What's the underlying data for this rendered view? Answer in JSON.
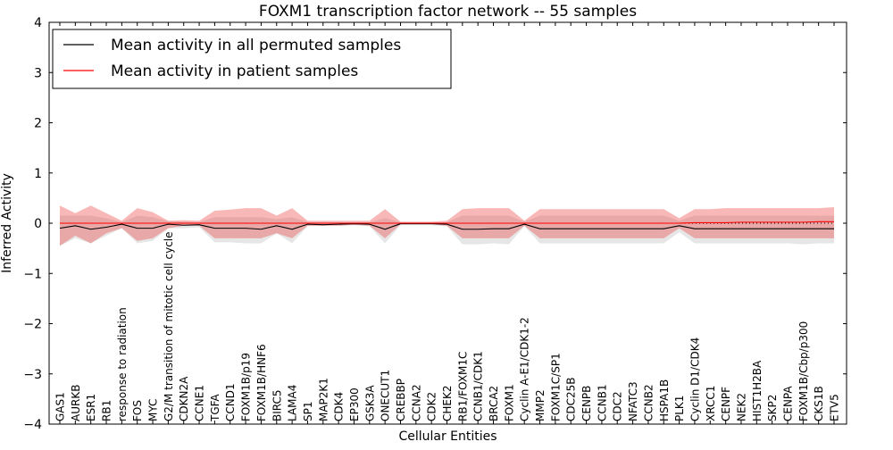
{
  "chart_data": {
    "type": "line",
    "title": "FOXM1 transcription factor network -- 55 samples",
    "xlabel": "Cellular Entities",
    "ylabel": "Inferred Activity",
    "ylim": [
      -4,
      4
    ],
    "yticks": [
      "−4",
      "−3",
      "−2",
      "−1",
      "0",
      "1",
      "2",
      "3",
      "4"
    ],
    "grid": false,
    "legend_position": "top-left",
    "categories": [
      "GAS1",
      "AURKB",
      "ESR1",
      "RB1",
      "response to radiation",
      "FOS",
      "MYC",
      "G2/M transition of mitotic cell cycle",
      "CDKN2A",
      "CCNE1",
      "TGFA",
      "CCND1",
      "FOXM1B/p19",
      "FOXM1B/HNF6",
      "BIRC5",
      "LAMA4",
      "SP1",
      "MAP2K1",
      "CDK4",
      "EP300",
      "GSK3A",
      "ONECUT1",
      "CREBBP",
      "CCNA2",
      "CDK2",
      "CHEK2",
      "RB1/FOXM1C",
      "CCNB1/CDK1",
      "BRCA2",
      "FOXM1",
      "Cyclin A-E1/CDK1-2",
      "MMP2",
      "FOXM1C/SP1",
      "CDC25B",
      "CENPB",
      "CCNB1",
      "CDC2",
      "NFATC3",
      "CCNB2",
      "HSPA1B",
      "PLK1",
      "Cyclin D1/CDK4",
      "XRCC1",
      "CENPF",
      "NEK2",
      "HIST1H2BA",
      "SKP2",
      "CENPA",
      "FOXM1B/Cbp/p300",
      "CKS1B",
      "ETV5"
    ],
    "series": [
      {
        "name": "Mean activity in all permuted samples",
        "color": "#000000",
        "values": [
          -0.1,
          -0.05,
          -0.12,
          -0.08,
          -0.02,
          -0.1,
          -0.1,
          -0.02,
          -0.04,
          -0.03,
          -0.1,
          -0.1,
          -0.1,
          -0.12,
          -0.05,
          -0.12,
          -0.02,
          -0.03,
          -0.02,
          -0.01,
          -0.02,
          -0.12,
          -0.01,
          -0.01,
          -0.01,
          -0.02,
          -0.12,
          -0.12,
          -0.11,
          -0.11,
          -0.02,
          -0.11,
          -0.11,
          -0.11,
          -0.11,
          -0.11,
          -0.11,
          -0.11,
          -0.11,
          -0.11,
          -0.05,
          -0.11,
          -0.11,
          -0.11,
          -0.11,
          -0.11,
          -0.11,
          -0.11,
          -0.11,
          -0.11,
          -0.11
        ],
        "band_lower": [
          -0.45,
          -0.3,
          -0.4,
          -0.25,
          -0.1,
          -0.4,
          -0.35,
          -0.1,
          -0.1,
          -0.08,
          -0.38,
          -0.38,
          -0.4,
          -0.4,
          -0.2,
          -0.4,
          -0.06,
          -0.05,
          -0.05,
          -0.04,
          -0.06,
          -0.4,
          -0.04,
          -0.04,
          -0.04,
          -0.06,
          -0.42,
          -0.42,
          -0.4,
          -0.42,
          -0.06,
          -0.4,
          -0.4,
          -0.4,
          -0.4,
          -0.4,
          -0.4,
          -0.4,
          -0.4,
          -0.4,
          -0.18,
          -0.4,
          -0.4,
          -0.4,
          -0.4,
          -0.4,
          -0.4,
          -0.4,
          -0.42,
          -0.4,
          -0.4
        ],
        "band_upper": [
          0.15,
          0.15,
          0.15,
          0.1,
          0.02,
          0.15,
          0.12,
          0.04,
          0.03,
          0.02,
          0.12,
          0.12,
          0.12,
          0.12,
          0.08,
          0.12,
          0.02,
          0.02,
          0.02,
          0.02,
          0.02,
          0.1,
          0.02,
          0.02,
          0.02,
          0.02,
          0.15,
          0.15,
          0.15,
          0.15,
          0.03,
          0.15,
          0.15,
          0.15,
          0.15,
          0.15,
          0.15,
          0.15,
          0.15,
          0.15,
          0.05,
          0.15,
          0.15,
          0.15,
          0.15,
          0.15,
          0.15,
          0.15,
          0.15,
          0.15,
          0.15
        ]
      },
      {
        "name": "Mean activity in patient samples",
        "color": "#ff0000",
        "values": [
          0.0,
          0.0,
          0.0,
          0.0,
          0.0,
          0.0,
          0.0,
          0.0,
          0.0,
          0.0,
          0.0,
          0.0,
          0.0,
          0.0,
          0.0,
          0.0,
          0.0,
          0.0,
          0.0,
          0.0,
          0.0,
          0.0,
          0.0,
          0.0,
          0.0,
          0.0,
          0.0,
          0.0,
          0.0,
          0.0,
          0.0,
          0.0,
          0.0,
          0.0,
          0.0,
          0.0,
          0.0,
          0.0,
          0.0,
          0.0,
          0.0,
          0.01,
          0.01,
          0.01,
          0.02,
          0.02,
          0.02,
          0.02,
          0.02,
          0.03,
          0.03
        ],
        "band_lower": [
          -0.45,
          -0.25,
          -0.4,
          -0.2,
          -0.1,
          -0.35,
          -0.3,
          -0.1,
          -0.05,
          -0.05,
          -0.3,
          -0.3,
          -0.3,
          -0.3,
          -0.2,
          -0.3,
          -0.05,
          -0.05,
          -0.05,
          -0.03,
          -0.05,
          -0.3,
          -0.02,
          -0.02,
          -0.02,
          -0.05,
          -0.3,
          -0.3,
          -0.3,
          -0.3,
          -0.05,
          -0.3,
          -0.3,
          -0.3,
          -0.3,
          -0.3,
          -0.3,
          -0.3,
          -0.3,
          -0.3,
          -0.1,
          -0.3,
          -0.3,
          -0.3,
          -0.3,
          -0.3,
          -0.3,
          -0.3,
          -0.3,
          -0.3,
          -0.3
        ],
        "band_upper": [
          0.35,
          0.2,
          0.35,
          0.2,
          0.05,
          0.3,
          0.22,
          0.05,
          0.06,
          0.05,
          0.25,
          0.27,
          0.3,
          0.3,
          0.15,
          0.3,
          0.05,
          0.05,
          0.05,
          0.05,
          0.05,
          0.28,
          0.03,
          0.03,
          0.03,
          0.05,
          0.28,
          0.3,
          0.3,
          0.3,
          0.05,
          0.28,
          0.28,
          0.28,
          0.28,
          0.28,
          0.28,
          0.28,
          0.28,
          0.28,
          0.1,
          0.28,
          0.28,
          0.3,
          0.3,
          0.3,
          0.3,
          0.3,
          0.3,
          0.3,
          0.32
        ]
      }
    ],
    "baseline": {
      "value": 0,
      "color": "#000000",
      "style": "dotted"
    }
  }
}
